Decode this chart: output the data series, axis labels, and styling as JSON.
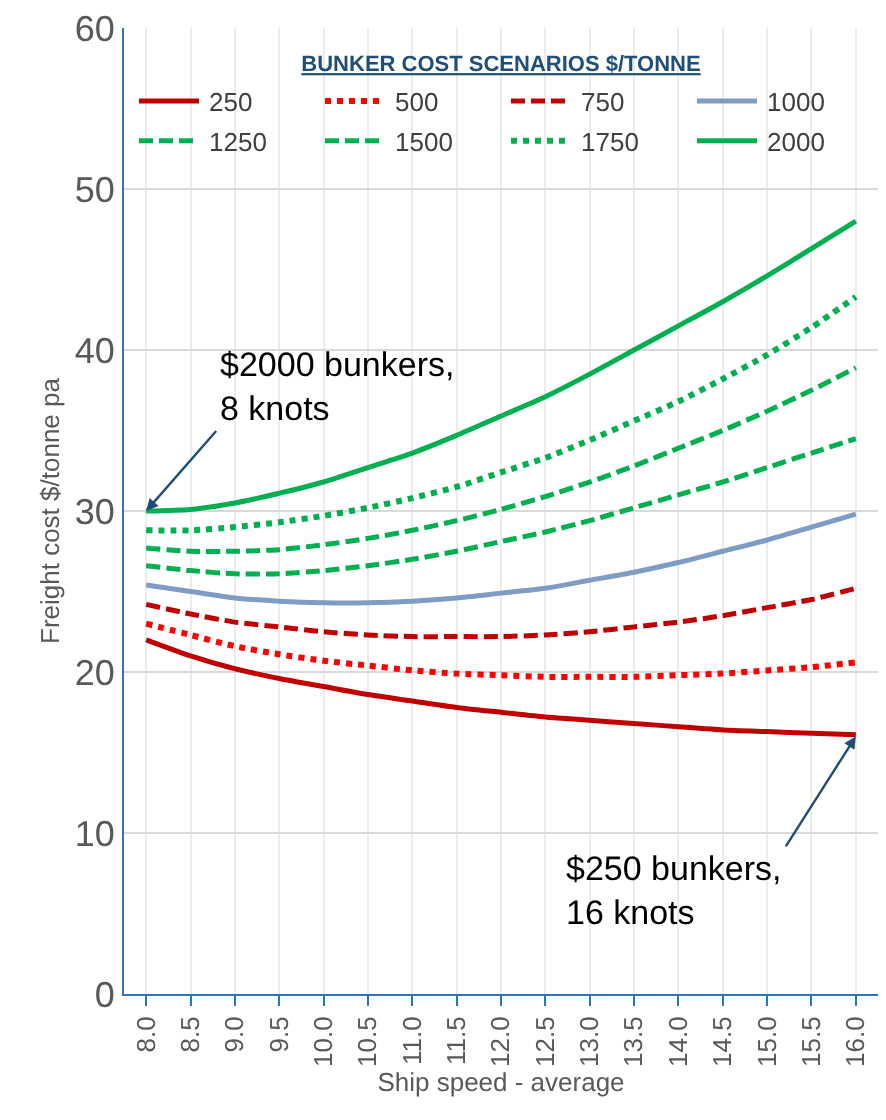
{
  "chart_data": {
    "type": "line",
    "xlabel": "Ship speed - average",
    "ylabel": "Freight cost $/tonne pa",
    "legend_title": "BUNKER COST SCENARIOS $/TONNE",
    "categories": [
      "8.0",
      "8.5",
      "9.0",
      "9.5",
      "10.0",
      "10.5",
      "11.0",
      "11.5",
      "12.0",
      "12.5",
      "13.0",
      "13.5",
      "14.0",
      "14.5",
      "15.0",
      "15.5",
      "16.0"
    ],
    "ylim": [
      0,
      60
    ],
    "yticks": [
      0,
      10,
      20,
      30,
      40,
      50,
      60
    ],
    "grid": true,
    "legend": "top",
    "marker": "none",
    "series": [
      {
        "name": "250",
        "color": "#c00000",
        "line_style": "solid",
        "values": [
          22.0,
          21.0,
          20.2,
          19.6,
          19.1,
          18.6,
          18.2,
          17.8,
          17.5,
          17.2,
          17.0,
          16.8,
          16.6,
          16.4,
          16.3,
          16.2,
          16.1
        ]
      },
      {
        "name": "500",
        "color": "#ff0000",
        "line_style": "dotted",
        "values": [
          23.0,
          22.3,
          21.6,
          21.1,
          20.7,
          20.4,
          20.1,
          19.9,
          19.8,
          19.7,
          19.7,
          19.7,
          19.8,
          19.9,
          20.1,
          20.3,
          20.6
        ]
      },
      {
        "name": "750",
        "color": "#c00000",
        "line_style": "dashed",
        "values": [
          24.2,
          23.6,
          23.1,
          22.8,
          22.5,
          22.3,
          22.2,
          22.2,
          22.2,
          22.3,
          22.5,
          22.8,
          23.1,
          23.5,
          24.0,
          24.5,
          25.2
        ]
      },
      {
        "name": "1000",
        "color": "#7f9cc4",
        "line_style": "solid",
        "values": [
          25.4,
          25.0,
          24.6,
          24.4,
          24.3,
          24.3,
          24.4,
          24.6,
          24.9,
          25.2,
          25.7,
          26.2,
          26.8,
          27.5,
          28.2,
          29.0,
          29.8
        ]
      },
      {
        "name": "1250",
        "color": "#00b050",
        "line_style": "dashed",
        "values": [
          26.6,
          26.3,
          26.1,
          26.1,
          26.3,
          26.6,
          27.0,
          27.5,
          28.1,
          28.7,
          29.4,
          30.2,
          31.0,
          31.8,
          32.7,
          33.6,
          34.5
        ]
      },
      {
        "name": "1500",
        "color": "#00b050",
        "line_style": "dashed",
        "values": [
          27.7,
          27.5,
          27.5,
          27.6,
          27.9,
          28.3,
          28.8,
          29.4,
          30.1,
          30.9,
          31.8,
          32.8,
          33.9,
          35.0,
          36.2,
          37.5,
          38.9
        ]
      },
      {
        "name": "1750",
        "color": "#00b050",
        "line_style": "dotted",
        "values": [
          28.8,
          28.8,
          29.0,
          29.3,
          29.7,
          30.2,
          30.8,
          31.5,
          32.4,
          33.3,
          34.4,
          35.6,
          36.8,
          38.2,
          39.7,
          41.4,
          43.3
        ]
      },
      {
        "name": "2000",
        "color": "#00b050",
        "line_style": "solid",
        "values": [
          30.0,
          30.1,
          30.5,
          31.1,
          31.8,
          32.7,
          33.6,
          34.7,
          35.9,
          37.1,
          38.5,
          40.0,
          41.5,
          43.0,
          44.6,
          46.3,
          48.0
        ]
      }
    ],
    "annotations": [
      {
        "text": "$2000 bunkers,\n8 knots",
        "x": "8.0",
        "y": 30
      },
      {
        "text": "$250 bunkers,\n16 knots",
        "x": "16.0",
        "y": 16
      }
    ]
  }
}
